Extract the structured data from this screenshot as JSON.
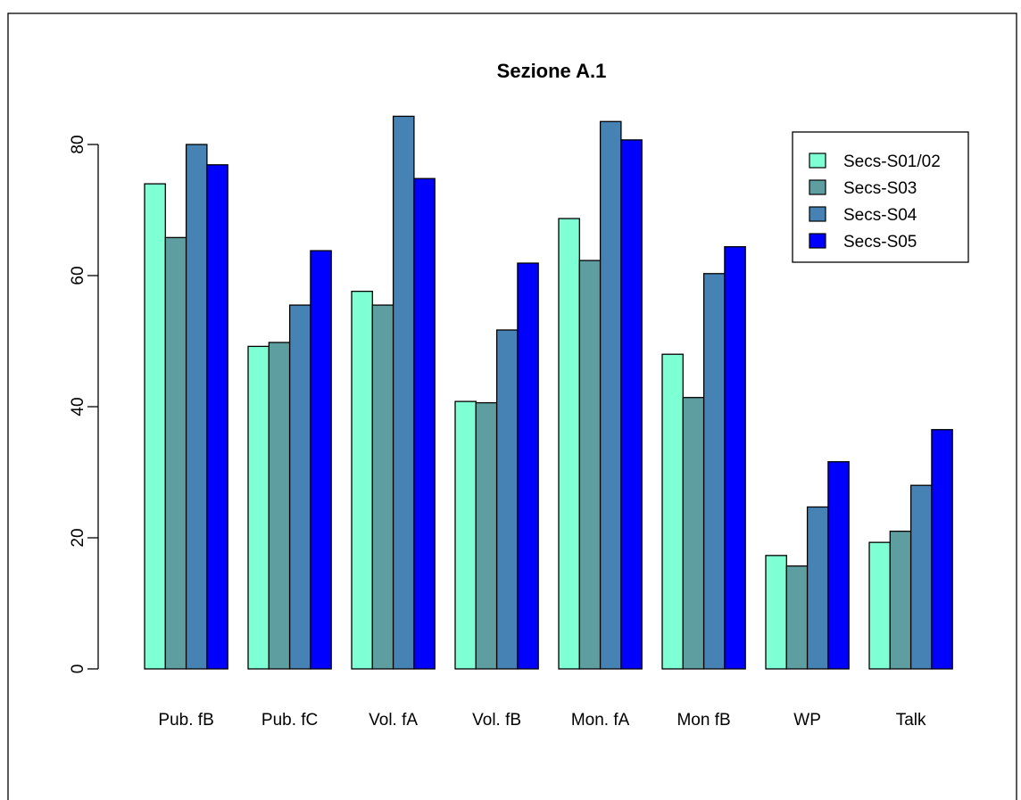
{
  "chart_data": {
    "type": "bar",
    "title": "Sezione A.1",
    "xlabel": "",
    "ylabel": "",
    "categories": [
      "Pub. fB",
      "Pub. fC",
      "Vol. fA",
      "Vol. fB",
      "Mon. fA",
      "Mon fB",
      "WP",
      "Talk"
    ],
    "series": [
      {
        "name": "Secs-S01/02",
        "color": "#7FFFD4",
        "values": [
          74.0,
          49.2,
          57.6,
          40.8,
          68.7,
          48.0,
          17.3,
          19.3
        ]
      },
      {
        "name": "Secs-S03",
        "color": "#5F9EA0",
        "values": [
          65.8,
          49.8,
          55.5,
          40.6,
          62.3,
          41.4,
          15.7,
          21.0
        ]
      },
      {
        "name": "Secs-S04",
        "color": "#4682B4",
        "values": [
          80.0,
          55.5,
          84.3,
          51.7,
          83.5,
          60.3,
          24.7,
          28.0
        ]
      },
      {
        "name": "Secs-S05",
        "color": "#0000FF",
        "values": [
          76.9,
          63.8,
          74.8,
          61.9,
          80.7,
          64.4,
          31.6,
          36.5
        ]
      }
    ],
    "yticks": [
      0,
      20,
      40,
      60,
      80
    ],
    "ylim": [
      0,
      87
    ],
    "grid": false,
    "legend_position": "top-right",
    "frame": "box"
  }
}
